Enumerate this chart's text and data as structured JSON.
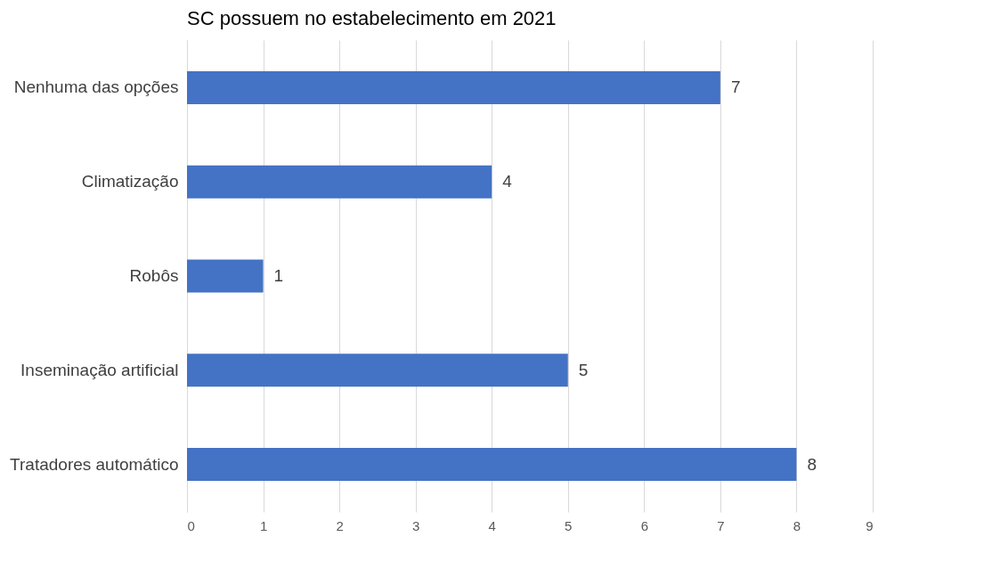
{
  "chart_data": {
    "type": "bar",
    "orientation": "horizontal",
    "title": "SC possuem no estabelecimento em 2021",
    "categories": [
      "Nenhuma das opções",
      "Climatização",
      "Robôs",
      "Inseminação artificial",
      "Tratadores automático"
    ],
    "values": [
      7,
      4,
      1,
      5,
      8
    ],
    "color": "#4472c4",
    "xlim": [
      0,
      9
    ],
    "xticks": [
      0,
      1,
      2,
      3,
      4,
      5,
      6,
      7,
      8,
      9
    ],
    "grid": "x",
    "data_labels": true
  }
}
